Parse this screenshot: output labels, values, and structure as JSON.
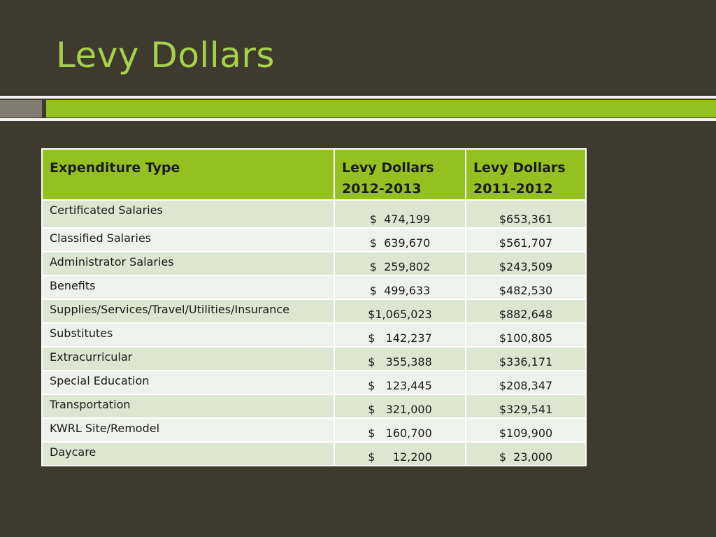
{
  "slide": {
    "title": "Levy Dollars"
  },
  "colors": {
    "background": "#3e3a2e",
    "title": "#a6d14a",
    "accent_green": "#94c11f",
    "accent_gray": "#827d72",
    "row_odd": "#dde6d1",
    "row_even": "#eef2e8"
  },
  "table": {
    "headers": [
      {
        "line1": "Expenditure Type",
        "line2": ""
      },
      {
        "line1": "Levy Dollars",
        "line2": "2012-2013"
      },
      {
        "line1": "Levy Dollars",
        "line2": "2011-2012"
      }
    ],
    "rows": [
      {
        "type": "Certificated Salaries",
        "y2012_2013": "$  474,199",
        "y2011_2012": "$653,361"
      },
      {
        "type": "Classified Salaries",
        "y2012_2013": "$  639,670",
        "y2011_2012": "$561,707"
      },
      {
        "type": "Administrator Salaries",
        "y2012_2013": "$  259,802",
        "y2011_2012": "$243,509"
      },
      {
        "type": "Benefits",
        "y2012_2013": "$  499,633",
        "y2011_2012": "$482,530"
      },
      {
        "type": "Supplies/Services/Travel/Utilities/Insurance",
        "y2012_2013": "$1,065,023",
        "y2011_2012": "$882,648"
      },
      {
        "type": "Substitutes",
        "y2012_2013": "$   142,237",
        "y2011_2012": "$100,805"
      },
      {
        "type": "Extracurricular",
        "y2012_2013": "$   355,388",
        "y2011_2012": "$336,171"
      },
      {
        "type": "Special Education",
        "y2012_2013": "$   123,445",
        "y2011_2012": "$208,347"
      },
      {
        "type": "Transportation",
        "y2012_2013": "$   321,000",
        "y2011_2012": "$329,541"
      },
      {
        "type": "KWRL Site/Remodel",
        "y2012_2013": "$   160,700",
        "y2011_2012": "$109,900"
      },
      {
        "type": "Daycare",
        "y2012_2013": "$     12,200",
        "y2011_2012": "$  23,000"
      }
    ]
  }
}
